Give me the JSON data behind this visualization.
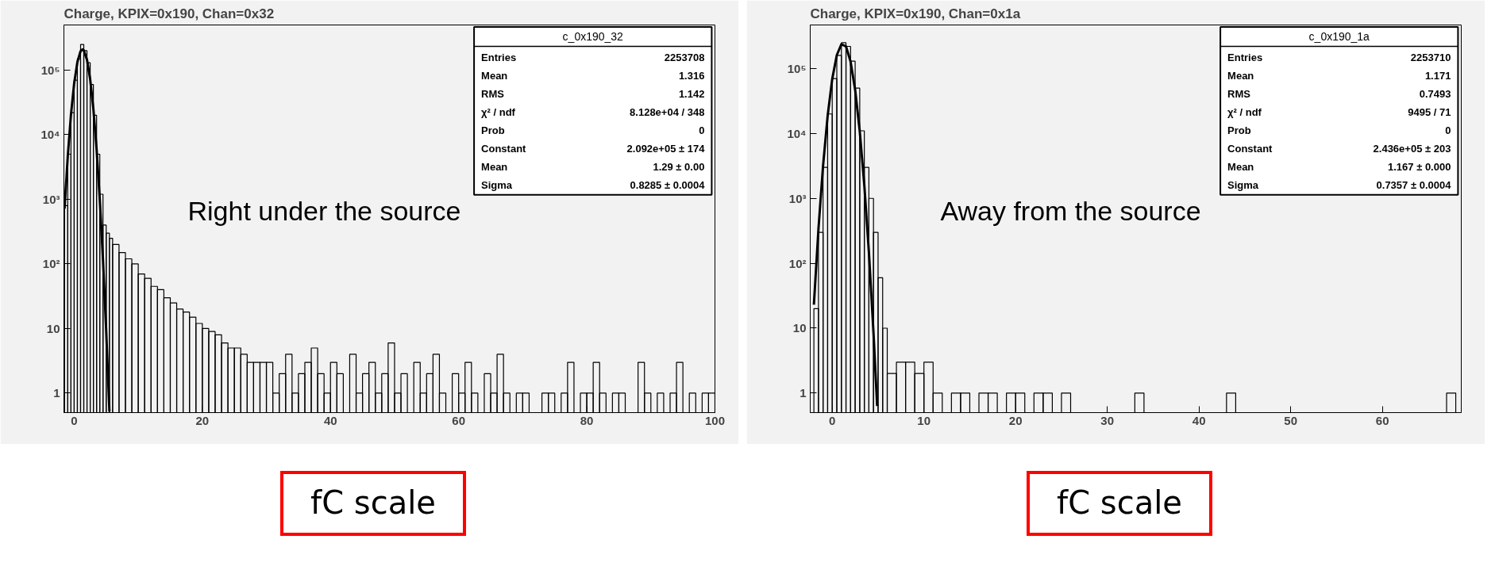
{
  "chart_data": [
    {
      "type": "histogram",
      "title": "Charge, KPIX=0x190, Chan=0x32",
      "log": "y",
      "grid": false,
      "xlim": [
        -1.6,
        100
      ],
      "xticks": [
        0,
        20,
        40,
        60,
        80,
        100
      ],
      "ylim": [
        0.5,
        500000
      ],
      "yticks": [
        {
          "value": 1,
          "label": "1"
        },
        {
          "value": 10,
          "label": "10"
        },
        {
          "value": 100,
          "label": "10²"
        },
        {
          "value": 1000,
          "label": "10³"
        },
        {
          "value": 10000,
          "label": "10⁴"
        },
        {
          "value": 100000,
          "label": "10⁵"
        }
      ],
      "annotations": [
        "Right under the source",
        "fC scale",
        "c_0x190_32",
        "Entries  2253708",
        "Mean  1.316",
        "RMS  1.142",
        "χ² / ndf  8.128e+04 / 348",
        "Prob  0",
        "Constant  2.092e+05 ± 174",
        "Mean  1.29 ± 0.00",
        "Sigma  0.8285 ± 0.0004"
      ],
      "series": [
        {
          "color": "#000000",
          "bins": [
            -1.5,
            -1,
            -0.5,
            0,
            0.5,
            1,
            1.5,
            2,
            2.5,
            3,
            3.5,
            4,
            4.5,
            5,
            5.5,
            6,
            7,
            8,
            9,
            10,
            11,
            12,
            13,
            14,
            15,
            16,
            17,
            18,
            19,
            20,
            21,
            22,
            23,
            24,
            25,
            26,
            27,
            28,
            29,
            30,
            31,
            32,
            33,
            34,
            35,
            36,
            37,
            38,
            39,
            40,
            41,
            42,
            43,
            44,
            45,
            46,
            47,
            48,
            49,
            50,
            51,
            52,
            53,
            54,
            55,
            56,
            57,
            58,
            59,
            60,
            61,
            62,
            63,
            64,
            65,
            66,
            67,
            68,
            69,
            70,
            71,
            73,
            74,
            75,
            76,
            77,
            78,
            79,
            80,
            81,
            82,
            83,
            84,
            85,
            86,
            88,
            89,
            90,
            91,
            92,
            93,
            94,
            95,
            96,
            97,
            98,
            99,
            100
          ],
          "values": [
            800,
            5000,
            22000,
            70000,
            150000,
            250000,
            200000,
            130000,
            60000,
            20000,
            5000,
            1200,
            400,
            300,
            250,
            200,
            150,
            120,
            100,
            70,
            60,
            45,
            40,
            30,
            25,
            20,
            18,
            15,
            12,
            10,
            9,
            8,
            6,
            5,
            5,
            4,
            3,
            3,
            3,
            3,
            1,
            2,
            4,
            1,
            2,
            3,
            5,
            2,
            1,
            3,
            2,
            null,
            4,
            1,
            2,
            3,
            1,
            2,
            6,
            1,
            2,
            null,
            3,
            1,
            2,
            4,
            1,
            null,
            2,
            1,
            3,
            1,
            null,
            2,
            1,
            4,
            1,
            null,
            1,
            1,
            null,
            1,
            1,
            null,
            1,
            3,
            null,
            1,
            1,
            3,
            1,
            null,
            1,
            1,
            null,
            3,
            1,
            null,
            1,
            null,
            1,
            3,
            null,
            1,
            null,
            1,
            1
          ]
        },
        {
          "type": "line",
          "color": "#000000",
          "x": [
            -1.5,
            -1,
            -0.5,
            0,
            0.5,
            1,
            1.29,
            1.5,
            2,
            2.5,
            3,
            3.5,
            4,
            4.5,
            5,
            5.5
          ],
          "values": [
            720,
            4590,
            20300,
            62300,
            132800,
            196800,
            209200,
            202500,
            144900,
            72000,
            24900,
            5970,
            994,
            115,
            9.2,
            0.52
          ]
        }
      ]
    },
    {
      "type": "histogram",
      "title": "Charge, KPIX=0x190, Chan=0x1a",
      "log": "y",
      "grid": false,
      "xlim": [
        -2.4,
        68.6
      ],
      "xticks": [
        0,
        10,
        20,
        30,
        40,
        50,
        60
      ],
      "ylim": [
        0.5,
        470000
      ],
      "yticks": [
        {
          "value": 1,
          "label": "1"
        },
        {
          "value": 10,
          "label": "10"
        },
        {
          "value": 100,
          "label": "10²"
        },
        {
          "value": 1000,
          "label": "10³"
        },
        {
          "value": 10000,
          "label": "10⁴"
        },
        {
          "value": 100000,
          "label": "10⁵"
        }
      ],
      "annotations": [
        "Away from the source",
        "fC scale",
        "c_0x190_1a",
        "Entries  2253710",
        "Mean  1.171",
        "RMS  0.7493",
        "χ² / ndf  9495 / 71",
        "Prob  0",
        "Constant  2.436e+05 ± 203",
        "Mean  1.167 ± 0.000",
        "Sigma  0.7357 ± 0.0004"
      ],
      "series": [
        {
          "color": "#000000",
          "bins": [
            -2,
            -1.5,
            -1,
            -0.5,
            0,
            0.5,
            1,
            1.5,
            2,
            2.5,
            3,
            3.5,
            4,
            4.5,
            5,
            5.5,
            6,
            7,
            8,
            9,
            10,
            11,
            12,
            13,
            14,
            15,
            16,
            17,
            18,
            19,
            20,
            21,
            22,
            23,
            24,
            25,
            26,
            33,
            34,
            43,
            44,
            67,
            68
          ],
          "values": [
            20,
            300,
            3000,
            20000,
            70000,
            160000,
            250000,
            220000,
            130000,
            50000,
            11000,
            3000,
            1000,
            300,
            60,
            10,
            2,
            3,
            3,
            2,
            3,
            1,
            null,
            1,
            1,
            null,
            1,
            1,
            null,
            1,
            1,
            null,
            1,
            1,
            null,
            1,
            null,
            1,
            null,
            1,
            null,
            1
          ]
        },
        {
          "type": "line",
          "color": "#000000",
          "x": [
            -2,
            -1.5,
            -1,
            -0.5,
            0,
            0.5,
            1,
            1.5,
            2,
            2.5,
            3,
            3.5,
            4,
            4.5,
            4.9
          ],
          "values": [
            23,
            341,
            3180,
            18700,
            69200,
            161500,
            237400,
            219900,
            128300,
            47200,
            10900,
            1600,
            147,
            8.5,
            0.63
          ]
        }
      ]
    }
  ]
}
